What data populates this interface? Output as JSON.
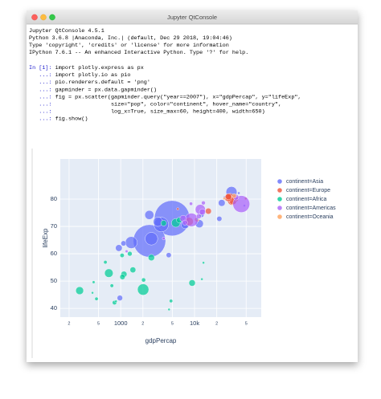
{
  "window": {
    "title": "Jupyter QtConsole"
  },
  "console": {
    "banner": [
      "Jupyter QtConsole 4.5.1",
      "Python 3.6.8 |Anaconda, Inc.| (default, Dec 29 2018, 19:04:46)",
      "Type 'copyright', 'credits' or 'license' for more information",
      "IPython 7.6.1 -- An enhanced Interactive Python. Type '?' for help."
    ],
    "input": [
      {
        "prompt": "In [1]: ",
        "code": "import plotly.express as px"
      },
      {
        "prompt": "   ...: ",
        "code": "import plotly.io as pio"
      },
      {
        "prompt": "   ...: ",
        "code": "pio.renderers.default = 'png'"
      },
      {
        "prompt": "   ...: ",
        "code": "gapminder = px.data.gapminder()"
      },
      {
        "prompt": "   ...: ",
        "code": "fig = px.scatter(gapminder.query(\"year==2007\"), x=\"gdpPercap\", y=\"lifeExp\","
      },
      {
        "prompt": "   ...: ",
        "code": "                 size=\"pop\", color=\"continent\", hover_name=\"country\","
      },
      {
        "prompt": "   ...: ",
        "code": "                 log_x=True, size_max=60, height=400, width=650)"
      },
      {
        "prompt": "   ...: ",
        "code": "fig.show()"
      }
    ]
  },
  "chart_data": {
    "type": "scatter",
    "x_label": "gdpPercap",
    "y_label": "lifeExp",
    "log_x": true,
    "grid": true,
    "legend": "right",
    "xlim": [
      152,
      80000
    ],
    "ylim": [
      36.8,
      94.7
    ],
    "xticks": [
      {
        "value": 200,
        "label": "2"
      },
      {
        "value": 500,
        "label": "5"
      },
      {
        "value": 1000,
        "label": "1000"
      },
      {
        "value": 2000,
        "label": "2"
      },
      {
        "value": 5000,
        "label": "5"
      },
      {
        "value": 10000,
        "label": "10k"
      },
      {
        "value": 20000,
        "label": "2"
      },
      {
        "value": 50000,
        "label": "5"
      }
    ],
    "yticks": [
      40,
      50,
      60,
      70,
      80
    ],
    "series": [
      {
        "name": "continent=Asia",
        "color": "#636efa",
        "x": [
          4959,
          2452,
          3541,
          31656,
          2606,
          1391,
          3190,
          2442,
          11606,
          7458,
          23348,
          975,
          21655,
          4471,
          12452,
          1091,
          39725,
          25523,
          47307,
          944
        ],
        "values": [
          73.0,
          64.7,
          70.7,
          82.6,
          65.5,
          64.1,
          71.7,
          74.2,
          71.0,
          70.6,
          78.6,
          43.8,
          72.8,
          59.5,
          74.2,
          63.8,
          82.2,
          80.7,
          77.6,
          62.1
        ],
        "size": [
          1318683096,
          1110396331,
          223547000,
          127467972,
          169270617,
          150448339,
          91077287,
          85262356,
          69453570,
          65068149,
          49044790,
          31889923,
          27601038,
          27499638,
          24821286,
          28901790,
          6980412,
          6426679,
          2505559,
          47761980
        ]
      },
      {
        "name": "continent=Europe",
        "color": "#ef553b",
        "x": [
          32170,
          8458,
          30470,
          33203,
          28570,
          28821,
          15390,
          10808,
          36798,
          49357,
          5937
        ],
        "values": [
          79.4,
          71.8,
          80.7,
          79.4,
          80.5,
          80.9,
          75.6,
          72.5,
          79.8,
          80.2,
          76.4
        ],
        "size": [
          82400996,
          71158647,
          61083916,
          60776238,
          58147733,
          40448191,
          38518241,
          22276056,
          16570613,
          4627926,
          3600523
        ]
      },
      {
        "name": "continent=Africa",
        "color": "#00cc96",
        "x": [
          2014,
          691,
          5581,
          278,
          9270,
          2602,
          1107,
          1463,
          3820,
          6223,
          1056,
          1328,
          824,
          1045,
          2042,
          470,
          4797,
          4513,
          12570,
          13206,
          12057,
          10957,
          863,
          620,
          759,
          430,
          415
        ],
        "values": [
          46.9,
          52.9,
          71.3,
          46.5,
          49.3,
          58.6,
          52.5,
          54.1,
          71.2,
          72.3,
          51.5,
          60.0,
          42.1,
          59.4,
          50.4,
          43.5,
          42.7,
          39.6,
          50.7,
          56.7,
          74.0,
          72.8,
          42.6,
          56.9,
          48.3,
          49.6,
          45.7
        ],
        "size": [
          135031164,
          76511887,
          80264543,
          64606759,
          43997828,
          42292929,
          38139640,
          35610177,
          33757175,
          33333216,
          29170398,
          22873338,
          19951656,
          19167654,
          17696293,
          12311143,
          12420476,
          1133066,
          1639131,
          1454867,
          6036914,
          1250882,
          6144562,
          12894865,
          13327079,
          8390505,
          3193942
        ]
      },
      {
        "name": "continent=Americas",
        "color": "#ab63fa",
        "x": [
          42952,
          9066,
          11978,
          7007,
          12779,
          36319,
          7409,
          11416,
          13172,
          8948,
          1202,
          3822
        ],
        "values": [
          78.2,
          72.4,
          76.2,
          72.9,
          75.3,
          80.7,
          71.4,
          73.7,
          78.6,
          78.3,
          60.9,
          65.6
        ],
        "size": [
          301139947,
          190010647,
          108700891,
          44227550,
          40301927,
          33390141,
          28674757,
          26084662,
          16284741,
          11416987,
          8502814,
          9119152
        ]
      },
      {
        "name": "continent=Oceania",
        "color": "#ffa15a",
        "x": [
          34435,
          25185
        ],
        "values": [
          81.2,
          80.2
        ],
        "size": [
          20434176,
          4115771
        ]
      }
    ]
  }
}
